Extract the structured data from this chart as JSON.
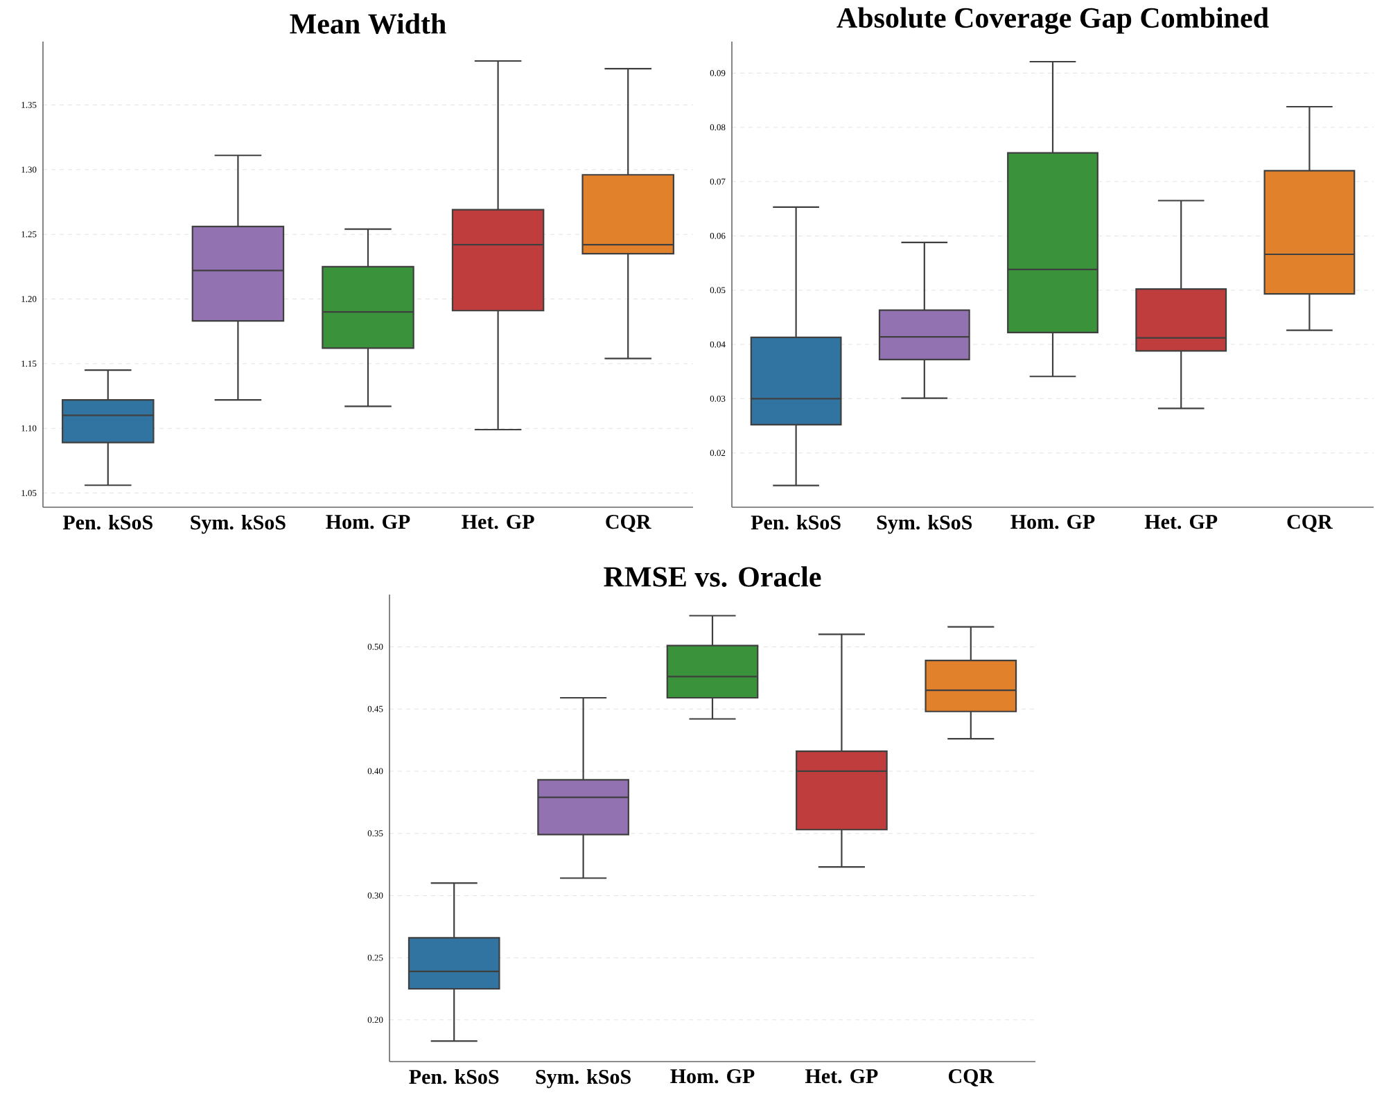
{
  "chart_data": [
    {
      "type": "box",
      "title": "Mean Width",
      "categories": [
        "Pen. kSoS",
        "Sym. kSoS",
        "Hom. GP",
        "Het. GP",
        "CQR"
      ],
      "colors": [
        "#3274a1",
        "#9372b2",
        "#3a923a",
        "#c03d3e",
        "#e1812c"
      ],
      "boxes": [
        {
          "low": 1.056,
          "q1": 1.089,
          "median": 1.11,
          "q3": 1.122,
          "high": 1.145
        },
        {
          "low": 1.122,
          "q1": 1.183,
          "median": 1.222,
          "q3": 1.256,
          "high": 1.311
        },
        {
          "low": 1.117,
          "q1": 1.162,
          "median": 1.19,
          "q3": 1.225,
          "high": 1.254
        },
        {
          "low": 1.099,
          "q1": 1.191,
          "median": 1.242,
          "q3": 1.269,
          "high": 1.384
        },
        {
          "low": 1.154,
          "q1": 1.235,
          "median": 1.242,
          "q3": 1.296,
          "high": 1.378
        }
      ],
      "ylim": [
        1.039,
        1.399
      ],
      "yticks": [
        {
          "value": 1.05,
          "label": "1.05"
        },
        {
          "value": 1.1,
          "label": "1.10"
        },
        {
          "value": 1.15,
          "label": "1.15"
        },
        {
          "value": 1.2,
          "label": "1.20"
        },
        {
          "value": 1.25,
          "label": "1.25"
        },
        {
          "value": 1.3,
          "label": "1.30"
        },
        {
          "value": 1.35,
          "label": "1.35"
        }
      ],
      "grid": "y"
    },
    {
      "type": "box",
      "title": "Absolute Coverage Gap Combined",
      "categories": [
        "Pen. kSoS",
        "Sym. kSoS",
        "Hom. GP",
        "Het. GP",
        "CQR"
      ],
      "colors": [
        "#3274a1",
        "#9372b2",
        "#3a923a",
        "#c03d3e",
        "#e1812c"
      ],
      "boxes": [
        {
          "low": 0.014,
          "q1": 0.0252,
          "median": 0.03,
          "q3": 0.0413,
          "high": 0.0653
        },
        {
          "low": 0.0301,
          "q1": 0.0372,
          "median": 0.0414,
          "q3": 0.0463,
          "high": 0.0588
        },
        {
          "low": 0.0341,
          "q1": 0.0422,
          "median": 0.0538,
          "q3": 0.0753,
          "high": 0.0921
        },
        {
          "low": 0.0282,
          "q1": 0.0388,
          "median": 0.0412,
          "q3": 0.0502,
          "high": 0.0665
        },
        {
          "low": 0.0426,
          "q1": 0.0493,
          "median": 0.0566,
          "q3": 0.072,
          "high": 0.0838
        }
      ],
      "ylim": [
        0.01,
        0.0958
      ],
      "yticks": [
        {
          "value": 0.02,
          "label": "0.02"
        },
        {
          "value": 0.03,
          "label": "0.03"
        },
        {
          "value": 0.04,
          "label": "0.04"
        },
        {
          "value": 0.05,
          "label": "0.05"
        },
        {
          "value": 0.06,
          "label": "0.06"
        },
        {
          "value": 0.07,
          "label": "0.07"
        },
        {
          "value": 0.08,
          "label": "0.08"
        },
        {
          "value": 0.09,
          "label": "0.09"
        }
      ],
      "grid": "y"
    },
    {
      "type": "box",
      "title": "RMSE vs. Oracle",
      "categories": [
        "Pen. kSoS",
        "Sym. kSoS",
        "Hom. GP",
        "Het. GP",
        "CQR"
      ],
      "colors": [
        "#3274a1",
        "#9372b2",
        "#3a923a",
        "#c03d3e",
        "#e1812c"
      ],
      "boxes": [
        {
          "low": 0.183,
          "q1": 0.225,
          "median": 0.239,
          "q3": 0.266,
          "high": 0.31
        },
        {
          "low": 0.314,
          "q1": 0.349,
          "median": 0.379,
          "q3": 0.393,
          "high": 0.459
        },
        {
          "low": 0.442,
          "q1": 0.459,
          "median": 0.476,
          "q3": 0.501,
          "high": 0.525
        },
        {
          "low": 0.323,
          "q1": 0.353,
          "median": 0.4,
          "q3": 0.416,
          "high": 0.51
        },
        {
          "low": 0.426,
          "q1": 0.448,
          "median": 0.465,
          "q3": 0.489,
          "high": 0.516
        }
      ],
      "ylim": [
        0.1665,
        0.542
      ],
      "yticks": [
        {
          "value": 0.2,
          "label": "0.20"
        },
        {
          "value": 0.25,
          "label": "0.25"
        },
        {
          "value": 0.3,
          "label": "0.30"
        },
        {
          "value": 0.35,
          "label": "0.35"
        },
        {
          "value": 0.4,
          "label": "0.40"
        },
        {
          "value": 0.45,
          "label": "0.45"
        },
        {
          "value": 0.5,
          "label": "0.50"
        }
      ],
      "grid": "y"
    }
  ]
}
